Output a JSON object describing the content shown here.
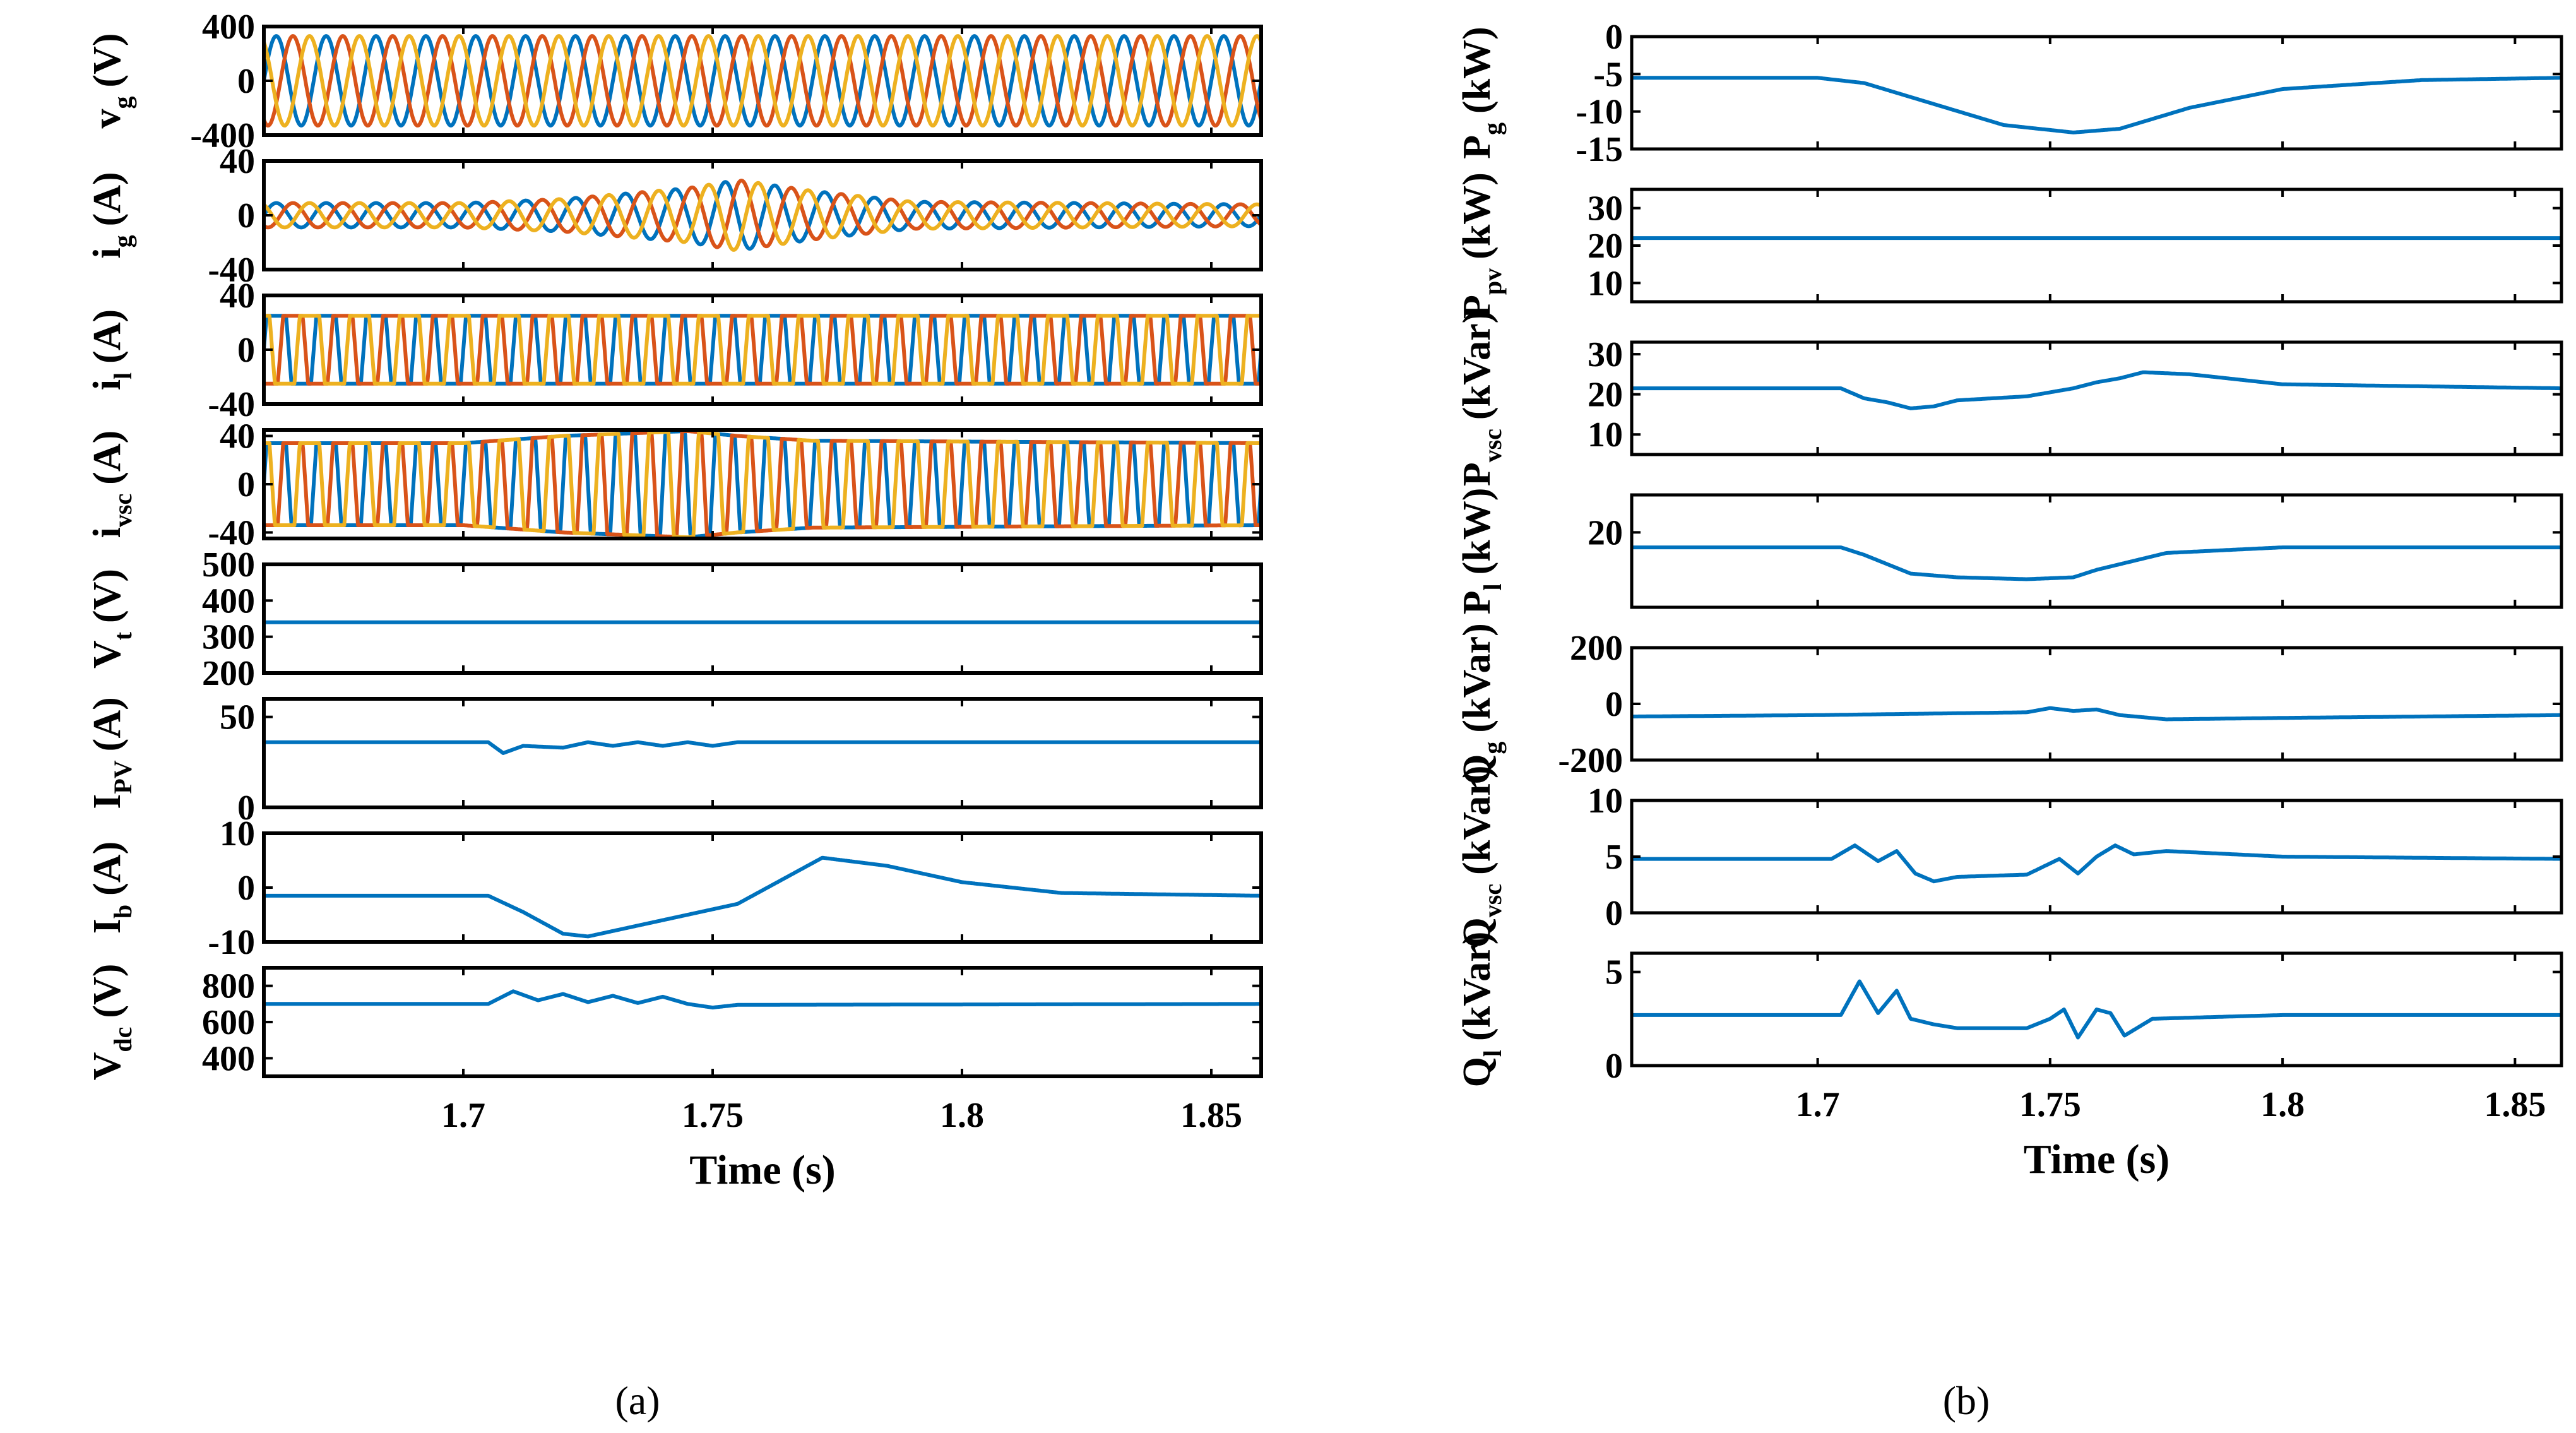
{
  "chart_data": [
    {
      "type": "line",
      "panel": "a",
      "panel_label": "(a)",
      "xlabel": "Time (s)",
      "xlim": [
        1.66,
        1.86
      ],
      "xticks": [
        "1.7",
        "1.75",
        "1.8",
        "1.85"
      ],
      "xtick_values": [
        1.7,
        1.75,
        1.8,
        1.85
      ],
      "colors": [
        "#0072BD",
        "#D95319",
        "#EDB120"
      ],
      "subplots": [
        {
          "id": "vg",
          "ylabel": "v",
          "ysub": "g",
          "yunit": "(V)",
          "ylim": [
            -400,
            400
          ],
          "yticks": [
            "400",
            "0",
            "-400"
          ],
          "ytick_values": [
            400,
            0,
            -400
          ],
          "wave": {
            "kind": "sine3",
            "amp": [
              330,
              330,
              330
            ],
            "freq_hz": 100
          }
        },
        {
          "id": "ig",
          "ylabel": "i",
          "ysub": "g",
          "yunit": "(A)",
          "ylim": [
            -40,
            40
          ],
          "yticks": [
            "40",
            "0",
            "-40"
          ],
          "ytick_values": [
            40,
            0,
            -40
          ],
          "wave": {
            "kind": "sine3env",
            "freq_hz": 100,
            "envelope_t": [
              1.66,
              1.7,
              1.72,
              1.745,
              1.755,
              1.77,
              1.79,
              1.86
            ],
            "envelope_a": [
              9,
              9,
              12,
              20,
              26,
              18,
              10,
              8
            ]
          }
        },
        {
          "id": "il",
          "ylabel": "i",
          "ysub": "l",
          "yunit": "(A)",
          "ylim": [
            -40,
            40
          ],
          "yticks": [
            "40",
            "0",
            "-40"
          ],
          "ytick_values": [
            40,
            0,
            -40
          ],
          "wave": {
            "kind": "square3",
            "amp": 25,
            "freq_hz": 100
          }
        },
        {
          "id": "ivsc",
          "ylabel": "i",
          "ysub": "vsc",
          "yunit": "(A)",
          "ylim": [
            -45,
            45
          ],
          "yticks": [
            "40",
            "0",
            "-40"
          ],
          "ytick_values": [
            40,
            0,
            -40
          ],
          "wave": {
            "kind": "square3env",
            "freq_hz": 100,
            "envelope_t": [
              1.66,
              1.7,
              1.72,
              1.745,
              1.755,
              1.77,
              1.86
            ],
            "envelope_a": [
              34,
              34,
              40,
              44,
              40,
              36,
              34
            ]
          }
        },
        {
          "id": "vt",
          "ylabel": "V",
          "ysub": "t",
          "yunit": "(V)",
          "ylim": [
            200,
            500
          ],
          "yticks": [
            "500",
            "400",
            "300",
            "200"
          ],
          "ytick_values": [
            500,
            400,
            300,
            200
          ],
          "wave": {
            "kind": "flat",
            "value": 340
          }
        },
        {
          "id": "ipv",
          "ylabel": "I",
          "ysub": "PV",
          "yunit": "(A)",
          "ylim": [
            0,
            60
          ],
          "yticks": [
            "50",
            "0"
          ],
          "ytick_values": [
            50,
            0
          ],
          "wave": {
            "kind": "curve",
            "t": [
              1.66,
              1.705,
              1.708,
              1.712,
              1.72,
              1.725,
              1.73,
              1.735,
              1.74,
              1.745,
              1.75,
              1.755,
              1.86
            ],
            "v": [
              36,
              36,
              30,
              34,
              33,
              36,
              34,
              36,
              34,
              36,
              34,
              36,
              36
            ]
          }
        },
        {
          "id": "ib",
          "ylabel": "I",
          "ysub": "b",
          "yunit": "(A)",
          "ylim": [
            -10,
            10
          ],
          "yticks": [
            "10",
            "0",
            "-10"
          ],
          "ytick_values": [
            10,
            0,
            -10
          ],
          "wave": {
            "kind": "curve",
            "t": [
              1.66,
              1.705,
              1.712,
              1.72,
              1.725,
              1.74,
              1.755,
              1.765,
              1.772,
              1.785,
              1.8,
              1.82,
              1.86
            ],
            "v": [
              -1.5,
              -1.5,
              -4.5,
              -8.5,
              -9,
              -6,
              -3,
              2,
              5.5,
              4,
              1,
              -1,
              -1.5
            ]
          }
        },
        {
          "id": "vdc",
          "ylabel": "V",
          "ysub": "dc",
          "yunit": "(V)",
          "ylim": [
            300,
            900
          ],
          "yticks": [
            "800",
            "600",
            "400"
          ],
          "ytick_values": [
            800,
            600,
            400
          ],
          "wave": {
            "kind": "curve",
            "t": [
              1.66,
              1.705,
              1.71,
              1.715,
              1.72,
              1.725,
              1.73,
              1.735,
              1.74,
              1.745,
              1.75,
              1.755,
              1.86
            ],
            "v": [
              700,
              700,
              770,
              720,
              755,
              710,
              745,
              705,
              740,
              700,
              680,
              695,
              700
            ]
          }
        }
      ]
    },
    {
      "type": "line",
      "panel": "b",
      "panel_label": "(b)",
      "xlabel": "Time (s)",
      "xlim": [
        1.66,
        1.86
      ],
      "xticks": [
        "1.7",
        "1.75",
        "1.8",
        "1.85"
      ],
      "xtick_values": [
        1.7,
        1.75,
        1.8,
        1.85
      ],
      "colors": [
        "#0072BD"
      ],
      "subplots": [
        {
          "id": "pg",
          "ylabel": "P",
          "ysub": "g",
          "yunit": "(kW)",
          "ylim": [
            -15,
            0
          ],
          "yticks": [
            "0",
            "-5",
            "-10",
            "-15"
          ],
          "ytick_values": [
            0,
            -5,
            -10,
            -15
          ],
          "t": [
            1.66,
            1.7,
            1.71,
            1.725,
            1.74,
            1.755,
            1.765,
            1.78,
            1.8,
            1.83,
            1.86
          ],
          "v": [
            -5.5,
            -5.5,
            -6.2,
            -9,
            -11.8,
            -12.8,
            -12.3,
            -9.5,
            -7,
            -5.8,
            -5.5
          ]
        },
        {
          "id": "ppv",
          "ylabel": "P",
          "ysub": "pv",
          "yunit": "(kW)",
          "ylim": [
            5,
            35
          ],
          "yticks": [
            "30",
            "20",
            "10"
          ],
          "ytick_values": [
            30,
            20,
            10
          ],
          "t": [
            1.66,
            1.86
          ],
          "v": [
            22,
            22
          ]
        },
        {
          "id": "pvsc",
          "ylabel": "P",
          "ysub": "vsc",
          "yunit": "(kVar)",
          "ylim": [
            5,
            33
          ],
          "yticks": [
            "30",
            "20",
            "10"
          ],
          "ytick_values": [
            30,
            20,
            10
          ],
          "t": [
            1.66,
            1.705,
            1.71,
            1.715,
            1.72,
            1.725,
            1.73,
            1.745,
            1.75,
            1.755,
            1.76,
            1.765,
            1.77,
            1.78,
            1.8,
            1.86
          ],
          "v": [
            21.5,
            21.5,
            19,
            18,
            16.5,
            17,
            18.5,
            19.5,
            20.5,
            21.5,
            23,
            24,
            25.5,
            25,
            22.5,
            21.5
          ]
        },
        {
          "id": "pl",
          "ylabel": "P",
          "ysub": "l",
          "yunit": "(kW)",
          "ylim": [
            0,
            30
          ],
          "yticks": [
            "20"
          ],
          "ytick_values": [
            20
          ],
          "t": [
            1.66,
            1.705,
            1.71,
            1.72,
            1.73,
            1.745,
            1.755,
            1.76,
            1.765,
            1.775,
            1.8,
            1.86
          ],
          "v": [
            16,
            16,
            14,
            9,
            8,
            7.5,
            8,
            10,
            11.5,
            14.5,
            16,
            16
          ]
        },
        {
          "id": "qg",
          "ylabel": "Q",
          "ysub": "g",
          "yunit": "(kVar)",
          "ylim": [
            -200,
            200
          ],
          "yticks": [
            "200",
            "0",
            "-200"
          ],
          "ytick_values": [
            200,
            0,
            -200
          ],
          "t": [
            1.66,
            1.7,
            1.745,
            1.75,
            1.755,
            1.76,
            1.765,
            1.775,
            1.8,
            1.86
          ],
          "v": [
            -45,
            -40,
            -30,
            -15,
            -25,
            -20,
            -40,
            -55,
            -50,
            -40
          ]
        },
        {
          "id": "qvsc",
          "ylabel": "Q",
          "ysub": "vsc",
          "yunit": "(kVar)",
          "ylim": [
            0,
            10
          ],
          "yticks": [
            "10",
            "5",
            "0"
          ],
          "ytick_values": [
            10,
            5,
            0
          ],
          "t": [
            1.66,
            1.703,
            1.708,
            1.713,
            1.717,
            1.721,
            1.725,
            1.73,
            1.745,
            1.752,
            1.756,
            1.76,
            1.764,
            1.768,
            1.775,
            1.8,
            1.86
          ],
          "v": [
            4.8,
            4.8,
            6,
            4.6,
            5.5,
            3.5,
            2.8,
            3.2,
            3.4,
            4.8,
            3.5,
            5,
            6,
            5.2,
            5.5,
            5,
            4.8
          ]
        },
        {
          "id": "ql",
          "ylabel": "Q",
          "ysub": "l",
          "yunit": "(kVar)",
          "ylim": [
            0,
            6
          ],
          "yticks": [
            "5",
            "0"
          ],
          "ytick_values": [
            5,
            0
          ],
          "t": [
            1.66,
            1.705,
            1.709,
            1.713,
            1.717,
            1.72,
            1.725,
            1.73,
            1.745,
            1.75,
            1.753,
            1.756,
            1.76,
            1.763,
            1.766,
            1.772,
            1.8,
            1.86
          ],
          "v": [
            2.7,
            2.7,
            4.5,
            2.8,
            4,
            2.5,
            2.2,
            2,
            2,
            2.5,
            3,
            1.5,
            3,
            2.8,
            1.6,
            2.5,
            2.7,
            2.7
          ]
        }
      ]
    }
  ]
}
